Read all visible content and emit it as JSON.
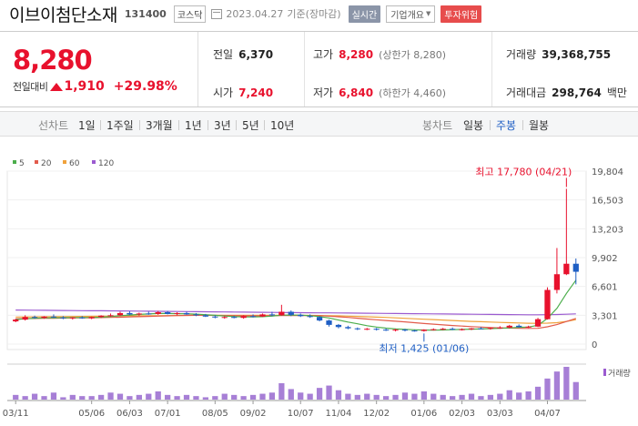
{
  "header": {
    "stock_name": "이브이첨단소재",
    "stock_code": "131400",
    "market": "코스닥",
    "date": "2023.04.27",
    "basis": "기준(장마감)",
    "realtime_btn": "실시간",
    "company_btn": "기업개요",
    "risk_btn": "투자위험"
  },
  "summary": {
    "price": "8,280",
    "change_label": "전일대비",
    "change_amount": "1,910",
    "change_pct": "+29.98%",
    "prev_close_label": "전일",
    "prev_close": "6,370",
    "high_label": "고가",
    "high": "8,280",
    "high_sub": "(상한가 8,280)",
    "volume_label": "거래량",
    "volume": "39,368,755",
    "open_label": "시가",
    "open": "7,240",
    "low_label": "저가",
    "low": "6,840",
    "low_sub": "(하한가 4,460)",
    "value_label": "거래대금",
    "value": "298,764",
    "value_unit": "백만"
  },
  "period_bar": {
    "line_label": "선차트",
    "line_periods": [
      "1일",
      "1주일",
      "3개월",
      "1년",
      "3년",
      "5년",
      "10년"
    ],
    "candle_label": "봉차트",
    "candle_periods": [
      "일봉",
      "주봉",
      "월봉"
    ],
    "active_candle": "주봉"
  },
  "colors": {
    "up": "#e8112d",
    "down": "#1f5fc4",
    "ma5": "#4cae4c",
    "ma20": "#e25b4c",
    "ma60": "#f0a23c",
    "ma120": "#9b5bd0"
  },
  "chart_data": {
    "type": "candlestick",
    "legend": [
      {
        "name": "5",
        "color": "#4cae4c"
      },
      {
        "name": "20",
        "color": "#e25b4c"
      },
      {
        "name": "60",
        "color": "#f0a23c"
      },
      {
        "name": "120",
        "color": "#9b5bd0"
      }
    ],
    "y_ticks": [
      "19,804",
      "16,503",
      "13,203",
      "9,902",
      "6,601",
      "3,301",
      "0"
    ],
    "ylim": [
      0,
      19804
    ],
    "x_ticks": [
      "03/11",
      "05/06",
      "06/03",
      "07/01",
      "08/05",
      "09/02",
      "10/07",
      "11/04",
      "12/02",
      "01/06",
      "02/03",
      "03/03",
      "04/07"
    ],
    "x_tick_weeks": [
      0,
      8,
      12,
      16,
      21,
      25,
      30,
      34,
      38,
      43,
      47,
      51,
      56
    ],
    "annotations": {
      "high": "최고 17,780 (04/21)",
      "high_value": 17780,
      "high_week": 58,
      "low": "최저 1,425 (01/06)",
      "low_value": 1425,
      "low_week": 43
    },
    "volume_label": "거래량",
    "candles": [
      [
        2600,
        2900,
        2500,
        2800
      ],
      [
        2800,
        3300,
        2700,
        3100
      ],
      [
        3100,
        3250,
        2900,
        3000
      ],
      [
        3000,
        3200,
        2900,
        3150
      ],
      [
        3150,
        3400,
        3000,
        3050
      ],
      [
        3050,
        3200,
        2850,
        2950
      ],
      [
        2950,
        3100,
        2800,
        3050
      ],
      [
        3050,
        3200,
        2900,
        2950
      ],
      [
        2950,
        3150,
        2850,
        3100
      ],
      [
        3100,
        3300,
        3000,
        3250
      ],
      [
        3250,
        3500,
        3150,
        3300
      ],
      [
        3300,
        3700,
        3200,
        3550
      ],
      [
        3550,
        3750,
        3300,
        3400
      ],
      [
        3400,
        3600,
        3250,
        3500
      ],
      [
        3500,
        3700,
        3350,
        3450
      ],
      [
        3450,
        3800,
        3350,
        3650
      ],
      [
        3650,
        3800,
        3400,
        3450
      ],
      [
        3450,
        3650,
        3300,
        3550
      ],
      [
        3550,
        3700,
        3350,
        3400
      ],
      [
        3400,
        3550,
        3200,
        3300
      ],
      [
        3300,
        3450,
        3100,
        3150
      ],
      [
        3150,
        3300,
        2950,
        3050
      ],
      [
        3050,
        3200,
        2900,
        3100
      ],
      [
        3100,
        3250,
        2950,
        3000
      ],
      [
        3000,
        3300,
        2900,
        3200
      ],
      [
        3200,
        3400,
        3050,
        3150
      ],
      [
        3150,
        3500,
        3100,
        3400
      ],
      [
        3400,
        3700,
        3200,
        3300
      ],
      [
        3300,
        4500,
        3250,
        3700
      ],
      [
        3700,
        3850,
        3200,
        3350
      ],
      [
        3350,
        3500,
        3100,
        3200
      ],
      [
        3200,
        3400,
        3000,
        3100
      ],
      [
        3100,
        3200,
        2600,
        2700
      ],
      [
        2700,
        2800,
        2000,
        2200
      ],
      [
        2200,
        2300,
        1800,
        1950
      ],
      [
        1950,
        2100,
        1700,
        1800
      ],
      [
        1800,
        1900,
        1600,
        1700
      ],
      [
        1700,
        1850,
        1600,
        1750
      ],
      [
        1750,
        1850,
        1550,
        1650
      ],
      [
        1650,
        1800,
        1500,
        1600
      ],
      [
        1600,
        1750,
        1450,
        1650
      ],
      [
        1650,
        1750,
        1450,
        1550
      ],
      [
        1550,
        1650,
        1425,
        1500
      ],
      [
        1500,
        1700,
        1425,
        1650
      ],
      [
        1650,
        1800,
        1550,
        1700
      ],
      [
        1700,
        1850,
        1600,
        1750
      ],
      [
        1750,
        1900,
        1600,
        1650
      ],
      [
        1650,
        1800,
        1550,
        1700
      ],
      [
        1700,
        1850,
        1600,
        1800
      ],
      [
        1800,
        1950,
        1700,
        1750
      ],
      [
        1750,
        1900,
        1650,
        1850
      ],
      [
        1850,
        2050,
        1750,
        1900
      ],
      [
        1900,
        2200,
        1800,
        2100
      ],
      [
        2100,
        2250,
        1900,
        1950
      ],
      [
        1950,
        2100,
        1850,
        2000
      ],
      [
        2000,
        3000,
        1950,
        2850
      ],
      [
        2850,
        6500,
        2800,
        6200
      ],
      [
        6200,
        11000,
        5800,
        8000
      ],
      [
        8000,
        17780,
        7900,
        9200
      ],
      [
        9200,
        9800,
        6840,
        8280
      ]
    ],
    "ma5": [
      2800,
      2900,
      2950,
      3000,
      3000,
      3020,
      3030,
      3040,
      3050,
      3080,
      3150,
      3250,
      3330,
      3400,
      3450,
      3500,
      3500,
      3480,
      3470,
      3430,
      3370,
      3290,
      3210,
      3150,
      3120,
      3110,
      3140,
      3200,
      3310,
      3330,
      3310,
      3250,
      3150,
      2990,
      2750,
      2520,
      2320,
      2110,
      1950,
      1820,
      1730,
      1690,
      1640,
      1600,
      1590,
      1620,
      1650,
      1680,
      1710,
      1730,
      1770,
      1800,
      1860,
      1920,
      1950,
      2160,
      2940,
      4090,
      5810,
      7320
    ],
    "ma20": [
      2900,
      2920,
      2930,
      2950,
      2960,
      2980,
      2990,
      3000,
      3010,
      3030,
      3050,
      3080,
      3110,
      3140,
      3170,
      3200,
      3230,
      3260,
      3280,
      3290,
      3290,
      3280,
      3270,
      3250,
      3240,
      3230,
      3230,
      3240,
      3260,
      3270,
      3270,
      3260,
      3250,
      3200,
      3130,
      3050,
      2960,
      2870,
      2780,
      2700,
      2620,
      2540,
      2450,
      2360,
      2280,
      2200,
      2130,
      2060,
      2000,
      1950,
      1900,
      1860,
      1830,
      1800,
      1790,
      1800,
      1980,
      2230,
      2580,
      2940
    ],
    "ma60": [
      3100,
      3110,
      3120,
      3130,
      3140,
      3150,
      3160,
      3170,
      3180,
      3190,
      3200,
      3210,
      3220,
      3230,
      3240,
      3250,
      3260,
      3270,
      3280,
      3290,
      3290,
      3300,
      3300,
      3300,
      3300,
      3300,
      3300,
      3300,
      3300,
      3300,
      3290,
      3280,
      3270,
      3250,
      3230,
      3200,
      3170,
      3130,
      3090,
      3050,
      3000,
      2950,
      2900,
      2850,
      2800,
      2750,
      2700,
      2650,
      2600,
      2560,
      2520,
      2480,
      2450,
      2420,
      2390,
      2380,
      2400,
      2450,
      2600,
      2800
    ],
    "ma120": [
      3900,
      3890,
      3880,
      3870,
      3860,
      3850,
      3840,
      3830,
      3820,
      3810,
      3800,
      3790,
      3780,
      3770,
      3760,
      3750,
      3740,
      3730,
      3720,
      3710,
      3700,
      3690,
      3680,
      3670,
      3660,
      3650,
      3640,
      3630,
      3620,
      3610,
      3600,
      3590,
      3580,
      3570,
      3560,
      3550,
      3540,
      3530,
      3520,
      3510,
      3500,
      3490,
      3480,
      3470,
      3460,
      3450,
      3440,
      3430,
      3420,
      3410,
      3400,
      3390,
      3380,
      3370,
      3360,
      3360,
      3370,
      3390,
      3420,
      3460
    ],
    "volume": [
      4,
      3,
      5,
      3,
      6,
      2,
      4,
      3,
      3,
      4,
      6,
      5,
      3,
      4,
      5,
      7,
      4,
      3,
      4,
      3,
      2,
      3,
      5,
      4,
      3,
      4,
      5,
      6,
      14,
      9,
      6,
      5,
      10,
      12,
      8,
      5,
      4,
      5,
      4,
      3,
      4,
      6,
      5,
      7,
      5,
      4,
      3,
      4,
      5,
      3,
      4,
      5,
      8,
      6,
      7,
      11,
      18,
      24,
      28,
      15
    ]
  }
}
